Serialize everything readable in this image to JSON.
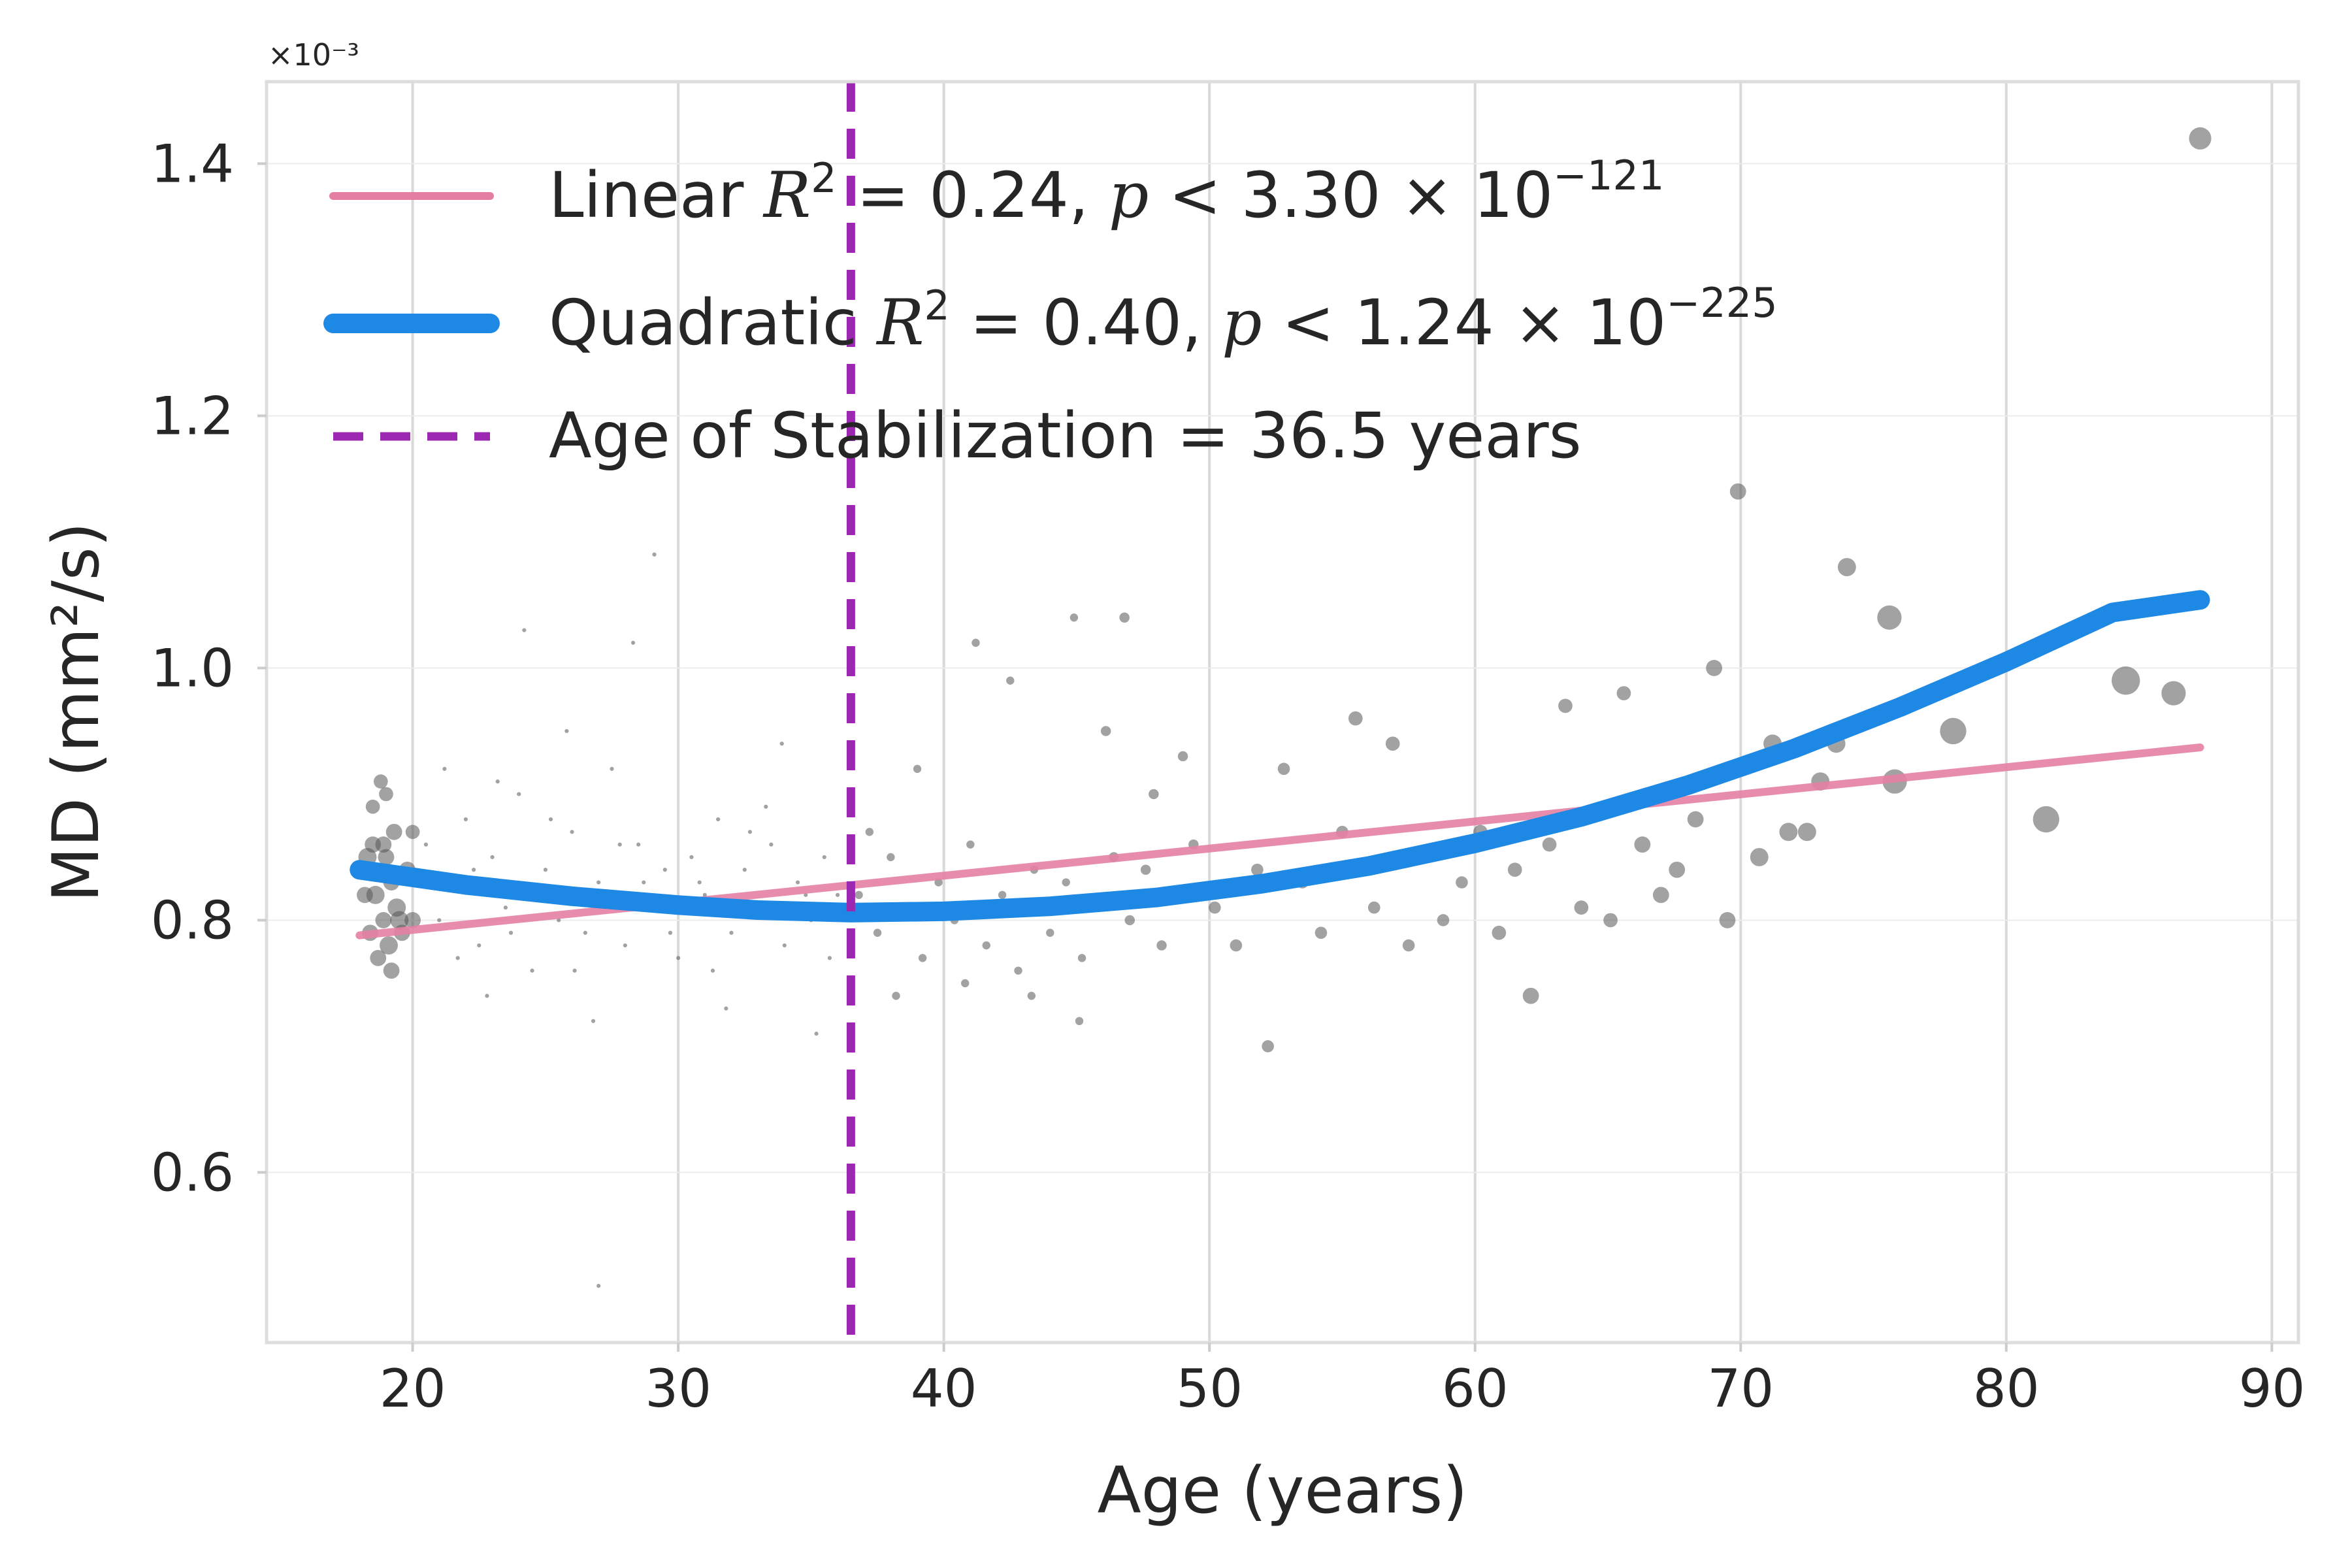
{
  "chart_data": {
    "type": "scatter",
    "xlabel": "Age (years)",
    "ylabel": "MD (mm²/s)",
    "y_exponent_label": "×10⁻³",
    "xlim": [
      14.5,
      91
    ],
    "ylim": [
      0.465,
      1.465
    ],
    "x_ticks": [
      20,
      30,
      40,
      50,
      60,
      70,
      80,
      90
    ],
    "x_tick_labels": [
      "20",
      "30",
      "40",
      "50",
      "60",
      "70",
      "80",
      "90"
    ],
    "y_ticks": [
      0.6,
      0.8,
      1.0,
      1.2,
      1.4
    ],
    "y_tick_labels": [
      "0.6",
      "0.8",
      "1.0",
      "1.2",
      "1.4"
    ],
    "grid": true,
    "legend_position": "top-left",
    "colors": {
      "scatter": "#555555",
      "linear": "#e47fa3",
      "quadratic": "#1e88e5",
      "stabilization": "#9c27b0"
    },
    "legend": [
      {
        "key": "linear",
        "prefix": "Linear  ",
        "r2": "0.24",
        "p_mantissa": "3.30",
        "p_exp": "−121"
      },
      {
        "key": "quadratic",
        "prefix": "Quadratic  ",
        "r2": "0.40",
        "p_mantissa": "1.24",
        "p_exp": "−225"
      },
      {
        "key": "stabilization",
        "text": "Age of Stabilization = 36.5 years"
      }
    ],
    "series": [
      {
        "name": "Linear",
        "type": "line",
        "x": [
          18.0,
          87.3
        ],
        "y": [
          0.788,
          0.937
        ]
      },
      {
        "name": "Quadratic",
        "type": "line",
        "x": [
          18.0,
          22.0,
          26.0,
          30.0,
          33.0,
          36.5,
          40.0,
          44.0,
          48.0,
          52.0,
          56.0,
          60.0,
          64.0,
          68.0,
          72.0,
          76.0,
          80.0,
          84.0,
          87.3
        ],
        "y": [
          0.84,
          0.828,
          0.819,
          0.812,
          0.808,
          0.806,
          0.807,
          0.811,
          0.818,
          0.829,
          0.843,
          0.861,
          0.882,
          0.907,
          0.936,
          0.969,
          1.005,
          1.044,
          1.054
        ]
      },
      {
        "name": "Age of Stabilization",
        "type": "vline",
        "x": 36.5
      }
    ],
    "points": [
      [
        18.3,
        0.84,
        8
      ],
      [
        18.5,
        0.86,
        8
      ],
      [
        18.6,
        0.82,
        9
      ],
      [
        18.8,
        0.91,
        7
      ],
      [
        18.9,
        0.8,
        8
      ],
      [
        19.0,
        0.85,
        8
      ],
      [
        19.1,
        0.78,
        9
      ],
      [
        19.2,
        0.83,
        8
      ],
      [
        19.3,
        0.87,
        8
      ],
      [
        19.4,
        0.81,
        9
      ],
      [
        18.4,
        0.79,
        8
      ],
      [
        18.7,
        0.77,
        8
      ],
      [
        19.0,
        0.9,
        7
      ],
      [
        19.5,
        0.8,
        9
      ],
      [
        20.0,
        0.87,
        7
      ],
      [
        19.8,
        0.84,
        8
      ],
      [
        18.2,
        0.82,
        8
      ],
      [
        18.9,
        0.86,
        8
      ],
      [
        19.6,
        0.79,
        8
      ],
      [
        18.5,
        0.89,
        7
      ],
      [
        19.2,
        0.76,
        8
      ],
      [
        18.3,
        0.85,
        9
      ],
      [
        20.0,
        0.8,
        8
      ],
      [
        20.5,
        0.86,
        2
      ],
      [
        21.0,
        0.8,
        2
      ],
      [
        21.5,
        0.83,
        2
      ],
      [
        22.0,
        0.88,
        2
      ],
      [
        22.5,
        0.78,
        2
      ],
      [
        23.0,
        0.85,
        2
      ],
      [
        23.5,
        0.81,
        2
      ],
      [
        24.0,
        0.9,
        2
      ],
      [
        24.5,
        0.76,
        2
      ],
      [
        25.0,
        0.84,
        2
      ],
      [
        25.5,
        0.8,
        2
      ],
      [
        26.0,
        0.87,
        2
      ],
      [
        26.5,
        0.79,
        2
      ],
      [
        27.0,
        0.83,
        2
      ],
      [
        27.5,
        0.92,
        2
      ],
      [
        28.0,
        0.78,
        2
      ],
      [
        28.5,
        0.86,
        2
      ],
      [
        29.0,
        0.81,
        2
      ],
      [
        29.5,
        0.84,
        2
      ],
      [
        30.0,
        0.77,
        2
      ],
      [
        30.5,
        0.85,
        2
      ],
      [
        31.0,
        0.82,
        2
      ],
      [
        31.5,
        0.88,
        2
      ],
      [
        32.0,
        0.79,
        2
      ],
      [
        32.5,
        0.84,
        2
      ],
      [
        33.0,
        0.81,
        2
      ],
      [
        33.5,
        0.86,
        2
      ],
      [
        34.0,
        0.78,
        2
      ],
      [
        34.5,
        0.83,
        2
      ],
      [
        35.0,
        0.8,
        2
      ],
      [
        35.5,
        0.85,
        2
      ],
      [
        36.0,
        0.82,
        2
      ],
      [
        21.2,
        0.92,
        2
      ],
      [
        22.8,
        0.74,
        2
      ],
      [
        24.2,
        1.03,
        2
      ],
      [
        25.8,
        0.95,
        2
      ],
      [
        26.8,
        0.72,
        2
      ],
      [
        28.3,
        1.02,
        2
      ],
      [
        29.1,
        1.09,
        2
      ],
      [
        27.0,
        0.51,
        2
      ],
      [
        31.8,
        0.73,
        2
      ],
      [
        33.9,
        0.94,
        2
      ],
      [
        35.2,
        0.71,
        2
      ],
      [
        22.3,
        0.84,
        2
      ],
      [
        23.7,
        0.79,
        2
      ],
      [
        25.2,
        0.88,
        2
      ],
      [
        26.3,
        0.82,
        2
      ],
      [
        27.8,
        0.86,
        2
      ],
      [
        29.7,
        0.79,
        2
      ],
      [
        30.8,
        0.83,
        2
      ],
      [
        32.7,
        0.87,
        2
      ],
      [
        34.8,
        0.82,
        2
      ],
      [
        21.7,
        0.77,
        2
      ],
      [
        23.2,
        0.91,
        2
      ],
      [
        24.7,
        0.82,
        2
      ],
      [
        26.1,
        0.76,
        2
      ],
      [
        28.7,
        0.83,
        2
      ],
      [
        31.3,
        0.76,
        2
      ],
      [
        33.3,
        0.89,
        2
      ],
      [
        35.7,
        0.77,
        2
      ],
      [
        36.8,
        0.82,
        4
      ],
      [
        37.5,
        0.79,
        4
      ],
      [
        38.0,
        0.85,
        4
      ],
      [
        38.6,
        0.81,
        4
      ],
      [
        39.2,
        0.77,
        4
      ],
      [
        39.8,
        0.83,
        4
      ],
      [
        40.4,
        0.8,
        4
      ],
      [
        41.0,
        0.86,
        4
      ],
      [
        41.6,
        0.78,
        4
      ],
      [
        42.2,
        0.82,
        4
      ],
      [
        42.8,
        0.76,
        4
      ],
      [
        43.4,
        0.84,
        4
      ],
      [
        44.0,
        0.79,
        4
      ],
      [
        44.6,
        0.83,
        4
      ],
      [
        45.2,
        0.77,
        4
      ],
      [
        45.8,
        0.81,
        4
      ],
      [
        46.4,
        0.85,
        5
      ],
      [
        47.0,
        0.8,
        5
      ],
      [
        47.6,
        0.84,
        5
      ],
      [
        48.2,
        0.78,
        5
      ],
      [
        48.8,
        0.82,
        5
      ],
      [
        49.4,
        0.86,
        5
      ],
      [
        37.2,
        0.87,
        4
      ],
      [
        39.0,
        0.92,
        4
      ],
      [
        41.2,
        1.02,
        4
      ],
      [
        42.5,
        0.99,
        4
      ],
      [
        44.9,
        1.04,
        4
      ],
      [
        46.8,
        1.04,
        5
      ],
      [
        43.3,
        0.74,
        4
      ],
      [
        45.1,
        0.72,
        4
      ],
      [
        40.8,
        0.75,
        4
      ],
      [
        38.2,
        0.74,
        4
      ],
      [
        47.9,
        0.9,
        5
      ],
      [
        49.0,
        0.93,
        5
      ],
      [
        46.1,
        0.95,
        5
      ],
      [
        50.2,
        0.81,
        6
      ],
      [
        51.0,
        0.78,
        6
      ],
      [
        51.8,
        0.84,
        6
      ],
      [
        52.2,
        0.7,
        6
      ],
      [
        52.8,
        0.92,
        6
      ],
      [
        53.5,
        0.83,
        6
      ],
      [
        54.2,
        0.79,
        6
      ],
      [
        55.0,
        0.87,
        6
      ],
      [
        55.5,
        0.96,
        7
      ],
      [
        56.2,
        0.81,
        6
      ],
      [
        56.9,
        0.94,
        7
      ],
      [
        57.5,
        0.78,
        6
      ],
      [
        58.1,
        0.85,
        6
      ],
      [
        58.8,
        0.8,
        6
      ],
      [
        59.5,
        0.83,
        6
      ],
      [
        60.2,
        0.87,
        7
      ],
      [
        60.9,
        0.79,
        7
      ],
      [
        61.5,
        0.84,
        7
      ],
      [
        62.1,
        0.74,
        8
      ],
      [
        62.8,
        0.86,
        7
      ],
      [
        63.4,
        0.97,
        7
      ],
      [
        64.0,
        0.81,
        7
      ],
      [
        65.1,
        0.8,
        7
      ],
      [
        65.6,
        0.98,
        7
      ],
      [
        66.3,
        0.86,
        8
      ],
      [
        67.0,
        0.82,
        8
      ],
      [
        67.6,
        0.84,
        8
      ],
      [
        68.3,
        0.88,
        8
      ],
      [
        69.0,
        1.0,
        8
      ],
      [
        69.5,
        0.8,
        8
      ],
      [
        69.9,
        1.14,
        8
      ],
      [
        70.7,
        0.85,
        9
      ],
      [
        71.2,
        0.94,
        9
      ],
      [
        71.8,
        0.87,
        9
      ],
      [
        72.5,
        0.87,
        9
      ],
      [
        73.0,
        0.91,
        9
      ],
      [
        73.6,
        0.94,
        9
      ],
      [
        74.0,
        1.08,
        9
      ],
      [
        75.6,
        1.04,
        12
      ],
      [
        75.8,
        0.91,
        12
      ],
      [
        78.0,
        0.95,
        13
      ],
      [
        81.5,
        0.88,
        13
      ],
      [
        84.5,
        0.99,
        14
      ],
      [
        86.3,
        0.98,
        12
      ],
      [
        87.3,
        1.42,
        11
      ]
    ]
  }
}
